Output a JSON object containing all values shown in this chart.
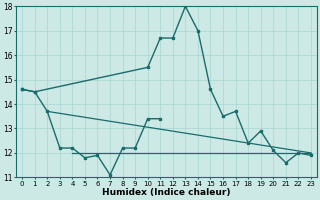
{
  "bg_color": "#cce9e6",
  "line_color": "#1a6b6b",
  "grid_color": "#a8d5d1",
  "xlabel": "Humidex (Indice chaleur)",
  "ylim": [
    11,
    18
  ],
  "xlim": [
    -0.5,
    23.5
  ],
  "yticks": [
    11,
    12,
    13,
    14,
    15,
    16,
    17,
    18
  ],
  "xticks": [
    0,
    1,
    2,
    3,
    4,
    5,
    6,
    7,
    8,
    9,
    10,
    11,
    12,
    13,
    14,
    15,
    16,
    17,
    18,
    19,
    20,
    21,
    22,
    23
  ],
  "curve1_x": [
    0,
    1,
    10,
    11,
    12,
    13,
    14,
    15,
    16,
    17,
    18,
    19,
    20,
    21,
    22,
    23
  ],
  "curve1_y": [
    14.6,
    14.5,
    15.5,
    16.7,
    16.7,
    18.0,
    17.0,
    14.6,
    13.5,
    13.7,
    12.4,
    12.9,
    12.1,
    11.6,
    12.0,
    11.9
  ],
  "curve2_x": [
    2,
    23
  ],
  "curve2_y": [
    13.7,
    12.0
  ],
  "curve3_x": [
    4,
    23
  ],
  "curve3_y": [
    12.0,
    12.0
  ],
  "zigzag_x": [
    0,
    1,
    2,
    3,
    4,
    5,
    6,
    7,
    8,
    9,
    10,
    11
  ],
  "zigzag_y": [
    14.6,
    14.5,
    13.7,
    12.2,
    12.2,
    11.8,
    11.9,
    11.1,
    12.2,
    12.2,
    13.4,
    13.4
  ]
}
